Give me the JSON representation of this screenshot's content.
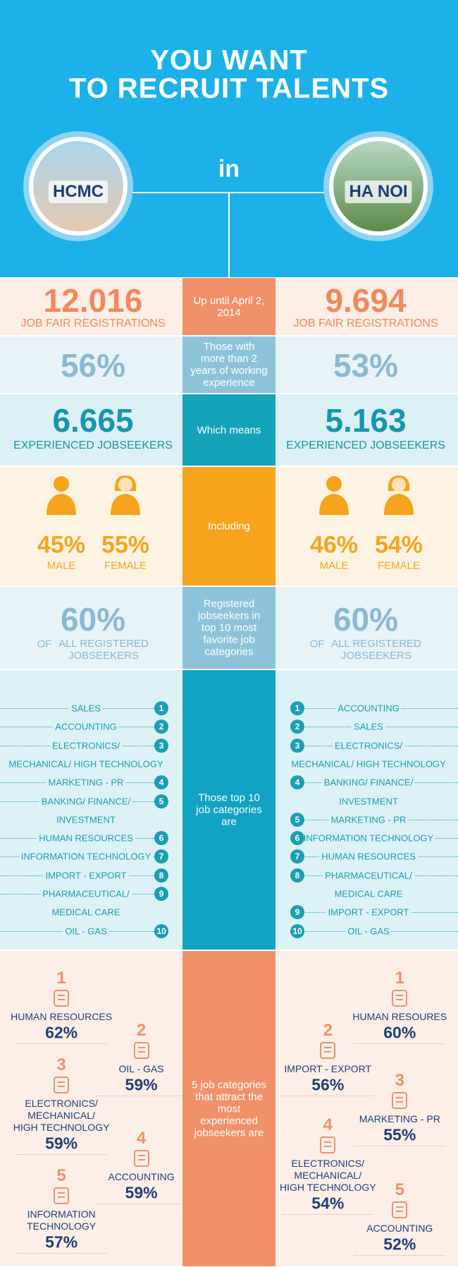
{
  "header": {
    "title_lines": [
      "YOU WANT",
      "TO RECRUIT TALENTS"
    ],
    "connector": "in",
    "cities": [
      "HCMC",
      "HA NOI"
    ]
  },
  "registrations": {
    "center": "Up until April 2, 2014",
    "left": {
      "value": "12.016",
      "label": "JOB FAIR REGISTRATIONS"
    },
    "right": {
      "value": "9.694",
      "label": "JOB FAIR REGISTRATIONS"
    }
  },
  "experience": {
    "center": "Those with more than 2 years of working experience",
    "left": "56%",
    "right": "53%"
  },
  "experienced": {
    "center": "Which means",
    "left": {
      "value": "6.665",
      "label": "EXPERIENCED JOBSEEKERS"
    },
    "right": {
      "value": "5.163",
      "label": "EXPERIENCED JOBSEEKERS"
    }
  },
  "gender": {
    "center": "Including",
    "male_label": "MALE",
    "female_label": "FEMALE",
    "left": {
      "male": "45%",
      "female": "55%"
    },
    "right": {
      "male": "46%",
      "female": "54%"
    }
  },
  "top10_share": {
    "center": "Registered jobseekers in top 10 most favorite job categories",
    "of": "OF",
    "label": "ALL REGISTERED JOBSEEKERS",
    "left": "60%",
    "right": "60%"
  },
  "top10": {
    "center": "Those top 10 job categories are",
    "left": [
      {
        "rank": 1,
        "lines": [
          "SALES"
        ]
      },
      {
        "rank": 2,
        "lines": [
          "ACCOUNTING"
        ]
      },
      {
        "rank": 3,
        "lines": [
          "ELECTRONICS/",
          "MECHANICAL/ HIGH TECHNOLOGY"
        ]
      },
      {
        "rank": 4,
        "lines": [
          "MARKETING - PR"
        ]
      },
      {
        "rank": 5,
        "lines": [
          "BANKING/ FINANCE/",
          "INVESTMENT"
        ]
      },
      {
        "rank": 6,
        "lines": [
          "HUMAN RESOURCES"
        ]
      },
      {
        "rank": 7,
        "lines": [
          "INFORMATION TECHNOLOGY"
        ]
      },
      {
        "rank": 8,
        "lines": [
          "IMPORT - EXPORT"
        ]
      },
      {
        "rank": 9,
        "lines": [
          "PHARMACEUTICAL/",
          "MEDICAL CARE"
        ]
      },
      {
        "rank": 10,
        "lines": [
          "OIL - GAS"
        ]
      }
    ],
    "right": [
      {
        "rank": 1,
        "lines": [
          "ACCOUNTING"
        ]
      },
      {
        "rank": 2,
        "lines": [
          "SALES"
        ]
      },
      {
        "rank": 3,
        "lines": [
          "ELECTRONICS/",
          "MECHANICAL/ HIGH TECHNOLOGY"
        ]
      },
      {
        "rank": 4,
        "lines": [
          "BANKING/ FINANCE/",
          "INVESTMENT"
        ]
      },
      {
        "rank": 5,
        "lines": [
          "MARKETING - PR"
        ]
      },
      {
        "rank": 6,
        "lines": [
          "INFORMATION TECHNOLOGY"
        ]
      },
      {
        "rank": 7,
        "lines": [
          "HUMAN RESOURCES"
        ]
      },
      {
        "rank": 8,
        "lines": [
          "PHARMACEUTICAL/",
          "MEDICAL CARE"
        ]
      },
      {
        "rank": 9,
        "lines": [
          "IMPORT - EXPORT"
        ]
      },
      {
        "rank": 10,
        "lines": [
          "OIL - GAS"
        ]
      }
    ]
  },
  "top5": {
    "center": "5 job categories that attract the most experienced jobseekers are",
    "left": [
      {
        "rank": 1,
        "lines": [
          "HUMAN RESOURCES"
        ],
        "share": "62%"
      },
      {
        "rank": 2,
        "lines": [
          "OIL - GAS"
        ],
        "share": "59%"
      },
      {
        "rank": 3,
        "lines": [
          "ELECTRONICS/",
          "MECHANICAL/",
          "HIGH TECHNOLOGY"
        ],
        "share": "59%"
      },
      {
        "rank": 4,
        "lines": [
          "ACCOUNTING"
        ],
        "share": "59%"
      },
      {
        "rank": 5,
        "lines": [
          "INFORMATION",
          "TECHNOLOGY"
        ],
        "share": "57%"
      }
    ],
    "right": [
      {
        "rank": 1,
        "lines": [
          "HUMAN RESOURES"
        ],
        "share": "60%"
      },
      {
        "rank": 2,
        "lines": [
          "IMPORT - EXPORT"
        ],
        "share": "56%"
      },
      {
        "rank": 3,
        "lines": [
          "MARKETING - PR"
        ],
        "share": "55%"
      },
      {
        "rank": 4,
        "lines": [
          "ELECTRONICS/",
          "MECHANICAL/",
          "HIGH TECHNOLOGY"
        ],
        "share": "54%"
      },
      {
        "rank": 5,
        "lines": [
          "ACCOUNTING"
        ],
        "share": "52%"
      }
    ]
  }
}
